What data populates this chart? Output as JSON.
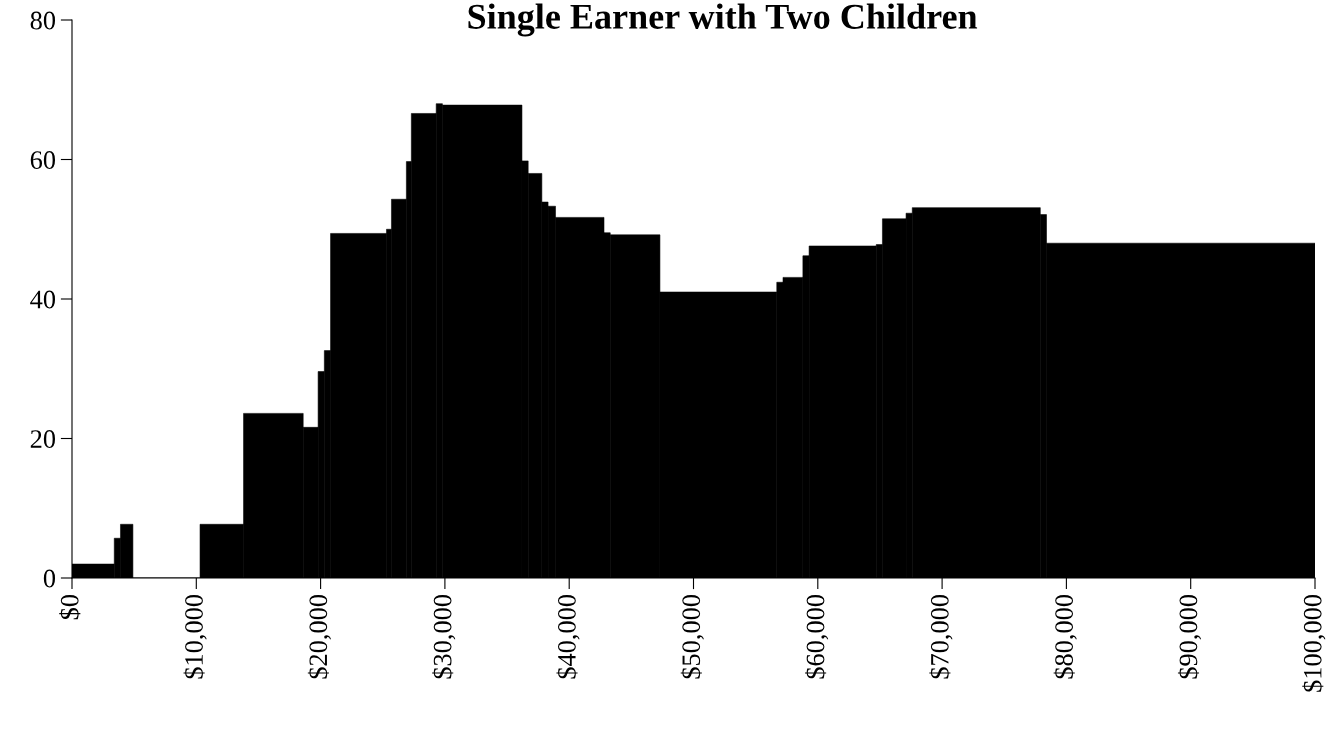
{
  "chart_data": {
    "type": "histogram",
    "title": "Single Earner with Two Children",
    "bins": [
      0,
      3400,
      3900,
      4900,
      10300,
      13800,
      18600,
      19800,
      20300,
      20800,
      25300,
      25700,
      26900,
      27300,
      29300,
      29800,
      36200,
      36700,
      37800,
      38300,
      38900,
      42800,
      43300,
      47300,
      56700,
      57200,
      58800,
      59300,
      64700,
      65200,
      67100,
      67600,
      77900,
      78400,
      100000
    ],
    "values": [
      2,
      5.7,
      7.7,
      0,
      7.7,
      23.6,
      21.6,
      29.6,
      32.6,
      49.4,
      50.0,
      54.3,
      59.7,
      66.6,
      68.0,
      67.8,
      59.8,
      58.0,
      53.9,
      53.3,
      51.7,
      49.5,
      49.2,
      41.0,
      42.4,
      43.1,
      46.2,
      47.6,
      47.8,
      51.5,
      52.3,
      53.1,
      52.1,
      48.0
    ],
    "color": "#000000",
    "xlim": [
      0,
      100000
    ],
    "xticks": [
      {
        "value": 0,
        "label": "$0"
      },
      {
        "value": 10000,
        "label": "$10,000"
      },
      {
        "value": 20000,
        "label": "$20,000"
      },
      {
        "value": 30000,
        "label": "$30,000"
      },
      {
        "value": 40000,
        "label": "$40,000"
      },
      {
        "value": 50000,
        "label": "$50,000"
      },
      {
        "value": 60000,
        "label": "$60,000"
      },
      {
        "value": 70000,
        "label": "$70,000"
      },
      {
        "value": 80000,
        "label": "$80,000"
      },
      {
        "value": 90000,
        "label": "$90,000"
      },
      {
        "value": 100000,
        "label": "$100,000"
      }
    ],
    "ylim": [
      0,
      80
    ],
    "yticks": [
      0,
      20,
      40,
      60,
      80
    ],
    "grid": false
  }
}
